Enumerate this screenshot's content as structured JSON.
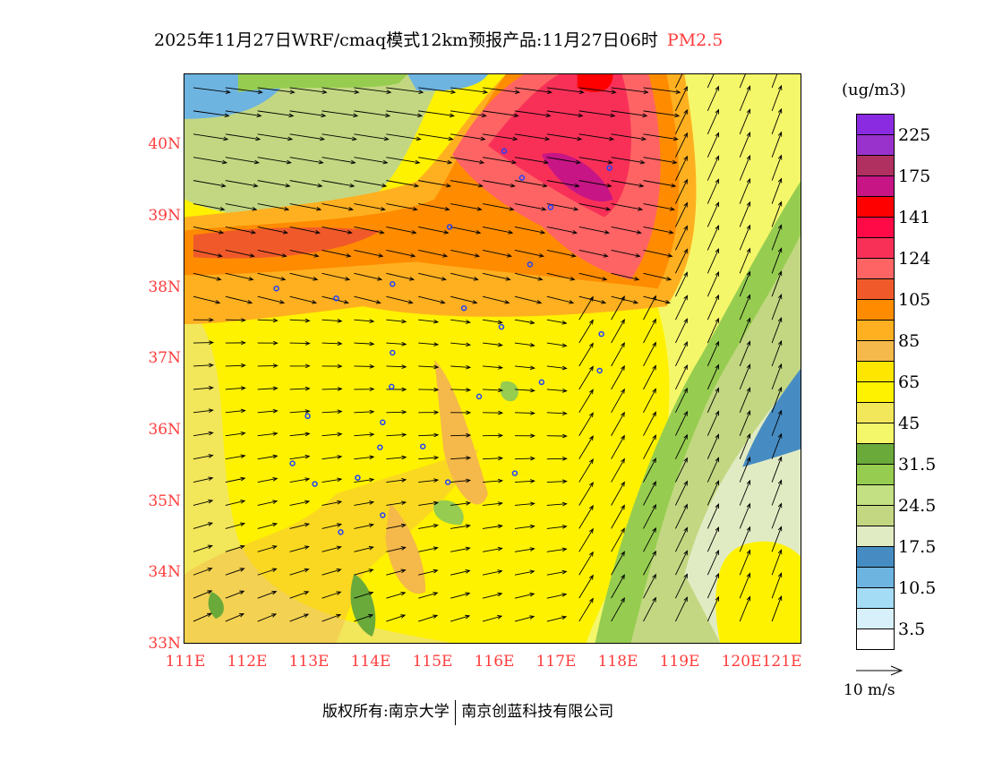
{
  "title": {
    "main": "2025年11月27日WRF/cmaq模式12km预报产品:11月27日06时",
    "species": "PM2.5"
  },
  "axes": {
    "lat_labels": [
      "40N",
      "39N",
      "38N",
      "37N",
      "36N",
      "35N",
      "34N",
      "33N"
    ],
    "lon_labels": [
      "111E",
      "112E",
      "113E",
      "114E",
      "115E",
      "116E",
      "117E",
      "118E",
      "119E",
      "120E",
      "121E"
    ]
  },
  "legend": {
    "unit": "(ug/m3)",
    "colors": [
      "#8a2be2",
      "#9932cc",
      "#b03060",
      "#c71585",
      "#ff0000",
      "#ff0a46",
      "#f83058",
      "#ff6464",
      "#f05a2a",
      "#ff8c00",
      "#ffb020",
      "#f5b84a",
      "#ffe600",
      "#fff200",
      "#f2e65a",
      "#f5f76a",
      "#6aaa3a",
      "#96cd50",
      "#c3e182",
      "#c3d782",
      "#e1ebc3",
      "#468cc3",
      "#6eb4e1",
      "#a5dcf5",
      "#d7f0fa",
      "#ffffff"
    ],
    "labels": [
      "225",
      "175",
      "141",
      "124",
      "105",
      "85",
      "65",
      "45",
      "31.5",
      "24.5",
      "17.5",
      "10.5",
      "3.5"
    ],
    "wind_ref": "10 m/s"
  },
  "footer": {
    "left": "版权所有:南京大学",
    "right": "南京创蓝科技有限公司"
  }
}
